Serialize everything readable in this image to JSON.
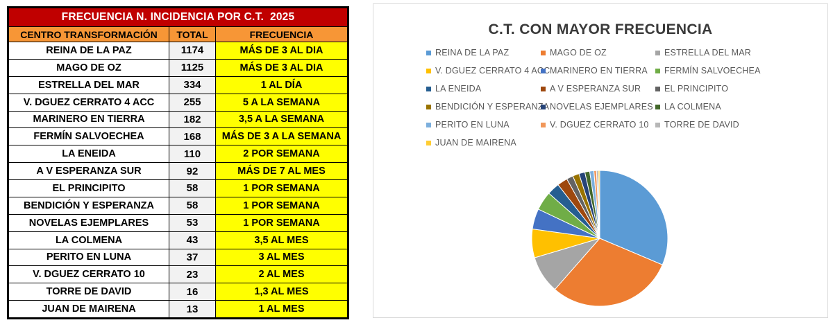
{
  "table": {
    "title": "FRECUENCIA N. INCIDENCIA POR C.T.  2025",
    "headers": {
      "name": "CENTRO TRANSFORMACIÓN",
      "total": "TOTAL",
      "freq": "FRECUENCIA"
    },
    "rows": [
      {
        "name": "REINA DE LA PAZ",
        "total": "1174",
        "freq": "MÁS DE 3 AL DIA"
      },
      {
        "name": "MAGO DE OZ",
        "total": "1125",
        "freq": "MÁS DE 3 AL DIA"
      },
      {
        "name": "ESTRELLA DEL MAR",
        "total": "334",
        "freq": "1 AL DÍA"
      },
      {
        "name": "V. DGUEZ CERRATO 4 ACC",
        "total": "255",
        "freq": "5 A LA SEMANA"
      },
      {
        "name": "MARINERO EN TIERRA",
        "total": "182",
        "freq": "3,5 A LA SEMANA"
      },
      {
        "name": "FERMÍN SALVOECHEA",
        "total": "168",
        "freq": "MÁS DE 3 A LA SEMANA"
      },
      {
        "name": "LA ENEIDA",
        "total": "110",
        "freq": "2 POR SEMANA"
      },
      {
        "name": "A V ESPERANZA SUR",
        "total": "92",
        "freq": "MÁS DE 7 AL MES"
      },
      {
        "name": "EL PRINCIPITO",
        "total": "58",
        "freq": "1 POR SEMANA"
      },
      {
        "name": "BENDICIÓN Y ESPERANZA",
        "total": "58",
        "freq": "1 POR SEMANA"
      },
      {
        "name": "NOVELAS EJEMPLARES",
        "total": "53",
        "freq": "1 POR SEMANA"
      },
      {
        "name": "LA COLMENA",
        "total": "43",
        "freq": "3,5 AL MES"
      },
      {
        "name": "PERITO EN LUNA",
        "total": "37",
        "freq": "3 AL MES"
      },
      {
        "name": "V. DGUEZ CERRATO 10",
        "total": "23",
        "freq": "2 AL MES"
      },
      {
        "name": "TORRE DE DAVID",
        "total": "16",
        "freq": "1,3 AL MES"
      },
      {
        "name": "JUAN DE MAIRENA",
        "total": "13",
        "freq": "1 AL MES"
      }
    ]
  },
  "chart_data": {
    "type": "pie",
    "title": "C.T. CON MAYOR FRECUENCIA",
    "legend_position": "top",
    "categories": [
      "REINA DE LA PAZ",
      "MAGO DE OZ",
      "ESTRELLA DEL MAR",
      "V. DGUEZ CERRATO 4 ACC",
      "MARINERO EN TIERRA",
      "FERMÍN SALVOECHEA",
      "LA ENEIDA",
      "A V ESPERANZA SUR",
      "EL PRINCIPITO",
      "BENDICIÓN Y ESPERANZA",
      "NOVELAS EJEMPLARES",
      "LA COLMENA",
      "PERITO EN LUNA",
      "V. DGUEZ CERRATO 10",
      "TORRE DE DAVID",
      "JUAN DE MAIRENA"
    ],
    "values": [
      1174,
      1125,
      334,
      255,
      182,
      168,
      110,
      92,
      58,
      58,
      53,
      43,
      37,
      23,
      16,
      13
    ],
    "colors": [
      "#5b9bd5",
      "#ed7d31",
      "#a5a5a5",
      "#ffc000",
      "#4472c4",
      "#70ad47",
      "#255e91",
      "#9e480e",
      "#636363",
      "#997300",
      "#264478",
      "#43682b",
      "#7cafdd",
      "#f1975a",
      "#b7b7b7",
      "#ffcd33"
    ]
  }
}
